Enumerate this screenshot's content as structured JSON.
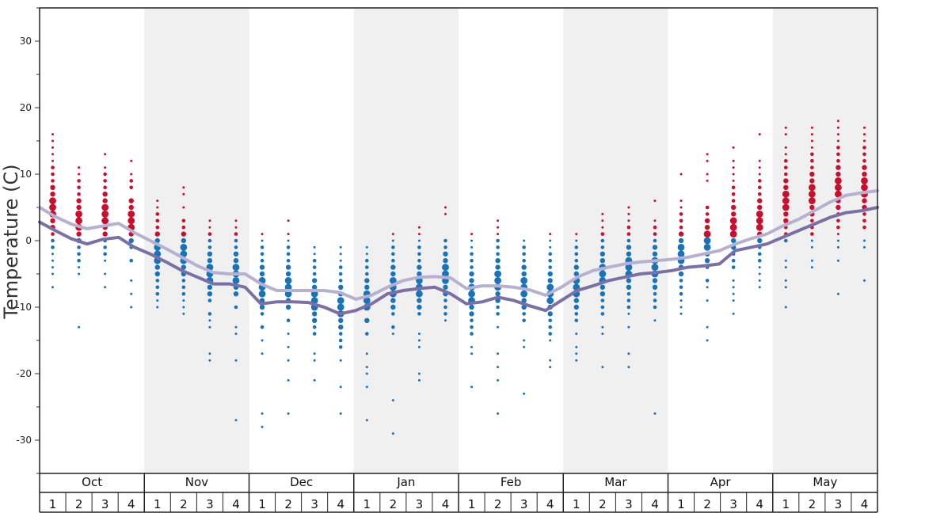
{
  "chart_data": {
    "type": "scatter",
    "ylabel": "Temperature (C)",
    "ylim": [
      -35,
      35
    ],
    "yticks": [
      -30,
      -20,
      -10,
      0,
      10,
      20,
      30
    ],
    "months": [
      "Oct",
      "Nov",
      "Dec",
      "Jan",
      "Feb",
      "Mar",
      "Apr",
      "May"
    ],
    "week_labels": [
      "1",
      "2",
      "3",
      "4"
    ],
    "colors": {
      "warm_dots": "#c8102e",
      "cold_dots": "#1a73b8",
      "line_upper": "#b7b0d0",
      "line_lower": "#7b6fa6",
      "shading": "#f0f0f0"
    },
    "series": [
      {
        "values": [
          5.0,
          3.6,
          2.5,
          1.8,
          2.2,
          2.6,
          1.2,
          0.0,
          -1.2,
          -2.5,
          -3.8,
          -4.8,
          -5.0,
          -5.0,
          -6.5,
          -7.5,
          -7.5,
          -7.5,
          -7.5,
          -7.8,
          -8.8,
          -8.2,
          -7.0,
          -6.0,
          -5.5,
          -5.4,
          -5.6,
          -7.2,
          -6.8,
          -6.8,
          -7.0,
          -7.4,
          -8.2,
          -7.0,
          -5.5,
          -4.5,
          -4.0,
          -3.5,
          -3.2,
          -3.0,
          -2.8,
          -2.5,
          -2.0,
          -1.5,
          -0.5,
          0.3,
          1.0,
          2.2,
          3.2,
          4.5,
          5.8,
          6.8,
          7.2,
          7.5
        ]
      },
      {
        "values": [
          2.8,
          1.5,
          0.3,
          -0.5,
          0.2,
          0.5,
          -1.0,
          -2.0,
          -3.2,
          -4.5,
          -5.5,
          -6.5,
          -6.5,
          -7.0,
          -9.5,
          -9.2,
          -9.2,
          -9.3,
          -10.0,
          -11.0,
          -10.5,
          -9.5,
          -8.0,
          -7.5,
          -7.2,
          -7.0,
          -8.0,
          -9.5,
          -9.2,
          -8.5,
          -9.0,
          -9.8,
          -10.5,
          -9.0,
          -7.5,
          -6.8,
          -6.0,
          -5.5,
          -5.0,
          -4.8,
          -4.5,
          -4.0,
          -3.8,
          -3.5,
          -1.5,
          -1.0,
          -0.5,
          0.5,
          1.5,
          2.5,
          3.5,
          4.2,
          4.5,
          5.0
        ]
      }
    ],
    "points": [
      {
        "week": 1,
        "temps": [
          16,
          15,
          14,
          13,
          12,
          11,
          10,
          9,
          8,
          7,
          6,
          5,
          4,
          3,
          2,
          1,
          0,
          -1,
          -2,
          -3,
          -4,
          -5,
          -7
        ]
      },
      {
        "week": 2,
        "temps": [
          11,
          10,
          9,
          8,
          7,
          6,
          5,
          4,
          3,
          2,
          1,
          0,
          -1,
          -2,
          -3,
          -4,
          -5,
          -13
        ]
      },
      {
        "week": 3,
        "temps": [
          13,
          11,
          10,
          9,
          8,
          7,
          6,
          5,
          4,
          3,
          2,
          1,
          0,
          -1,
          -2,
          -3,
          -5,
          -7
        ]
      },
      {
        "week": 4,
        "temps": [
          12,
          10,
          9,
          8,
          6,
          5,
          4,
          3,
          2,
          1,
          0,
          -1,
          -3,
          -6,
          -8,
          -10
        ]
      },
      {
        "week": 1,
        "temps": [
          6,
          5,
          4,
          3,
          2,
          1,
          0,
          -1,
          -2,
          -3,
          -4,
          -5,
          -6,
          -7,
          -8,
          -9,
          -10
        ]
      },
      {
        "week": 2,
        "temps": [
          8,
          7,
          5,
          3,
          2,
          1,
          0,
          -1,
          -2,
          -3,
          -4,
          -5,
          -6,
          -7,
          -8,
          -9,
          -10,
          -11
        ]
      },
      {
        "week": 3,
        "temps": [
          3,
          2,
          1,
          0,
          -1,
          -2,
          -3,
          -4,
          -5,
          -6,
          -7,
          -8,
          -9,
          -11,
          -12,
          -13,
          -17,
          -18
        ]
      },
      {
        "week": 4,
        "temps": [
          3,
          2,
          1,
          0,
          -1,
          -2,
          -3,
          -4,
          -5,
          -6,
          -7,
          -8,
          -10,
          -13,
          -14,
          -18,
          -27
        ]
      },
      {
        "week": 1,
        "temps": [
          1,
          0,
          -1,
          -2,
          -3,
          -4,
          -5,
          -6,
          -7,
          -8,
          -9,
          -10,
          -11,
          -13,
          -15,
          -17,
          -26,
          -28
        ]
      },
      {
        "week": 2,
        "temps": [
          3,
          1,
          0,
          -1,
          -2,
          -3,
          -4,
          -5,
          -6,
          -7,
          -8,
          -9,
          -10,
          -12,
          -14,
          -16,
          -18,
          -21,
          -26
        ]
      },
      {
        "week": 3,
        "temps": [
          -1,
          -2,
          -3,
          -4,
          -5,
          -6,
          -7,
          -8,
          -9,
          -10,
          -11,
          -12,
          -13,
          -14,
          -17,
          -18,
          -21
        ]
      },
      {
        "week": 4,
        "temps": [
          -1,
          -2,
          -3,
          -4,
          -5,
          -6,
          -7,
          -8,
          -9,
          -10,
          -11,
          -12,
          -13,
          -14,
          -15,
          -16,
          -18,
          -22,
          -26
        ]
      },
      {
        "week": 1,
        "temps": [
          -1,
          -2,
          -3,
          -4,
          -5,
          -6,
          -7,
          -8,
          -9,
          -10,
          -12,
          -14,
          -17,
          -19,
          -20,
          -22,
          -27
        ]
      },
      {
        "week": 2,
        "temps": [
          1,
          0,
          -1,
          -2,
          -3,
          -4,
          -5,
          -6,
          -7,
          -8,
          -9,
          -10,
          -11,
          -13,
          -14,
          -24,
          -29
        ]
      },
      {
        "week": 3,
        "temps": [
          2,
          1,
          0,
          -1,
          -2,
          -3,
          -4,
          -5,
          -6,
          -7,
          -8,
          -9,
          -10,
          -11,
          -14,
          -15,
          -16,
          -20,
          -21
        ]
      },
      {
        "week": 4,
        "temps": [
          5,
          4,
          0,
          -1,
          -2,
          -3,
          -4,
          -5,
          -6,
          -7,
          -8,
          -9,
          -10,
          -11,
          -12
        ]
      },
      {
        "week": 1,
        "temps": [
          1,
          0,
          -1,
          -2,
          -3,
          -4,
          -5,
          -6,
          -7,
          -8,
          -9,
          -10,
          -11,
          -12,
          -13,
          -14,
          -16,
          -17,
          -22
        ]
      },
      {
        "week": 2,
        "temps": [
          3,
          2,
          1,
          0,
          -1,
          -2,
          -3,
          -4,
          -5,
          -6,
          -7,
          -8,
          -9,
          -10,
          -11,
          -13,
          -17,
          -19,
          -21,
          -26
        ]
      },
      {
        "week": 3,
        "temps": [
          0,
          -1,
          -2,
          -3,
          -4,
          -5,
          -6,
          -7,
          -8,
          -9,
          -10,
          -11,
          -12,
          -15,
          -16,
          -23
        ]
      },
      {
        "week": 4,
        "temps": [
          1,
          0,
          -1,
          -2,
          -3,
          -4,
          -5,
          -6,
          -7,
          -8,
          -9,
          -10,
          -11,
          -12,
          -13,
          -14,
          -15,
          -18,
          -19
        ]
      },
      {
        "week": 1,
        "temps": [
          1,
          0,
          -1,
          -2,
          -3,
          -4,
          -5,
          -6,
          -7,
          -8,
          -9,
          -10,
          -11,
          -12,
          -14,
          -16,
          -17,
          -18
        ]
      },
      {
        "week": 2,
        "temps": [
          4,
          3,
          2,
          1,
          0,
          -1,
          -2,
          -3,
          -4,
          -5,
          -6,
          -7,
          -8,
          -9,
          -10,
          -11,
          -13,
          -14,
          -19
        ]
      },
      {
        "week": 3,
        "temps": [
          5,
          4,
          3,
          2,
          1,
          0,
          -1,
          -2,
          -3,
          -4,
          -5,
          -6,
          -7,
          -8,
          -9,
          -10,
          -11,
          -13,
          -17,
          -19
        ]
      },
      {
        "week": 4,
        "temps": [
          6,
          3,
          2,
          1,
          0,
          -1,
          -2,
          -3,
          -4,
          -5,
          -6,
          -7,
          -8,
          -9,
          -10,
          -12,
          -26
        ]
      },
      {
        "week": 1,
        "temps": [
          10,
          6,
          5,
          4,
          3,
          2,
          1,
          0,
          -1,
          -2,
          -3,
          -4,
          -5,
          -6,
          -7,
          -8,
          -9,
          -10,
          -11
        ]
      },
      {
        "week": 2,
        "temps": [
          13,
          12,
          10,
          9,
          5,
          4,
          3,
          2,
          1,
          0,
          -1,
          -2,
          -3,
          -4,
          -6,
          -7,
          -9,
          -13,
          -15
        ]
      },
      {
        "week": 3,
        "temps": [
          14,
          12,
          11,
          10,
          9,
          8,
          7,
          6,
          5,
          4,
          3,
          2,
          1,
          0,
          -1,
          -2,
          -3,
          -4,
          -6,
          -7,
          -8,
          -9,
          -11
        ]
      },
      {
        "week": 4,
        "temps": [
          16,
          12,
          11,
          10,
          9,
          8,
          7,
          6,
          5,
          4,
          3,
          2,
          1,
          0,
          -1,
          -2,
          -3,
          -4,
          -5,
          -6,
          -7
        ]
      },
      {
        "week": 1,
        "temps": [
          17,
          16,
          14,
          13,
          12,
          11,
          10,
          9,
          8,
          7,
          6,
          5,
          4,
          3,
          2,
          1,
          0,
          -3,
          -4,
          -6,
          -7,
          -10
        ]
      },
      {
        "week": 2,
        "temps": [
          17,
          16,
          15,
          14,
          13,
          12,
          11,
          10,
          9,
          8,
          7,
          6,
          5,
          4,
          3,
          2,
          1,
          0,
          -1,
          -3,
          -4
        ]
      },
      {
        "week": 3,
        "temps": [
          18,
          17,
          16,
          15,
          14,
          13,
          12,
          11,
          10,
          9,
          8,
          7,
          6,
          5,
          4,
          3,
          2,
          1,
          0,
          -1,
          -3,
          -8
        ]
      },
      {
        "week": 4,
        "temps": [
          17,
          16,
          15,
          14,
          13,
          12,
          11,
          10,
          9,
          8,
          7,
          6,
          5,
          4,
          3,
          2,
          0,
          -1,
          -6
        ]
      }
    ]
  }
}
